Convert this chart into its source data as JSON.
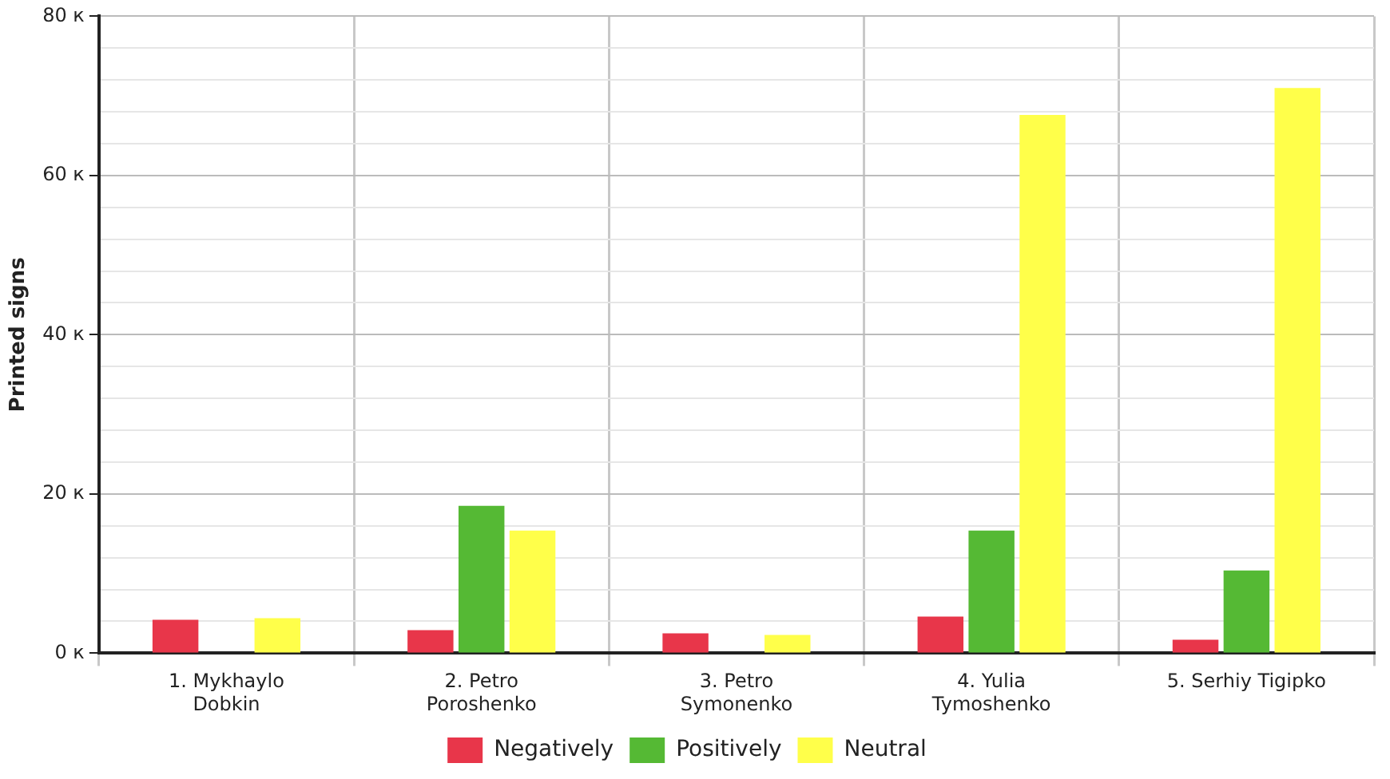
{
  "chart_data": {
    "type": "bar",
    "ylabel": "Printed signs",
    "categories": [
      "1. Mykhaylo\nDobkin",
      "2. Petro\nPoroshenko",
      "3. Petro\nSymonenko",
      "4. Yulia\nTymoshenko",
      "5. Serhiy Tigipko"
    ],
    "series": [
      {
        "name": "Negatively",
        "color": "#e8364a",
        "values": [
          4.2,
          2.9,
          2.5,
          4.6,
          1.7
        ]
      },
      {
        "name": "Positively",
        "color": "#55b934",
        "values": [
          0,
          18.5,
          0,
          15.4,
          10.4
        ]
      },
      {
        "name": "Neutral",
        "color": "#ffff4a",
        "values": [
          4.4,
          15.4,
          2.3,
          67.6,
          71.0
        ]
      }
    ],
    "ylim": [
      0,
      80
    ],
    "yticks": [
      {
        "value": 0,
        "label": "0 к"
      },
      {
        "value": 4,
        "label": null
      },
      {
        "value": 8,
        "label": null
      },
      {
        "value": 12,
        "label": null
      },
      {
        "value": 16,
        "label": null
      },
      {
        "value": 20,
        "label": "20 к"
      },
      {
        "value": 24,
        "label": null
      },
      {
        "value": 28,
        "label": null
      },
      {
        "value": 32,
        "label": null
      },
      {
        "value": 36,
        "label": null
      },
      {
        "value": 40,
        "label": "40 к"
      },
      {
        "value": 44,
        "label": null
      },
      {
        "value": 48,
        "label": null
      },
      {
        "value": 52,
        "label": null
      },
      {
        "value": 56,
        "label": null
      },
      {
        "value": 60,
        "label": "60 к"
      },
      {
        "value": 64,
        "label": null
      },
      {
        "value": 68,
        "label": null
      },
      {
        "value": 72,
        "label": null
      },
      {
        "value": 76,
        "label": null
      },
      {
        "value": 80,
        "label": "80 к"
      }
    ],
    "grid": true,
    "legend": "bottom"
  }
}
